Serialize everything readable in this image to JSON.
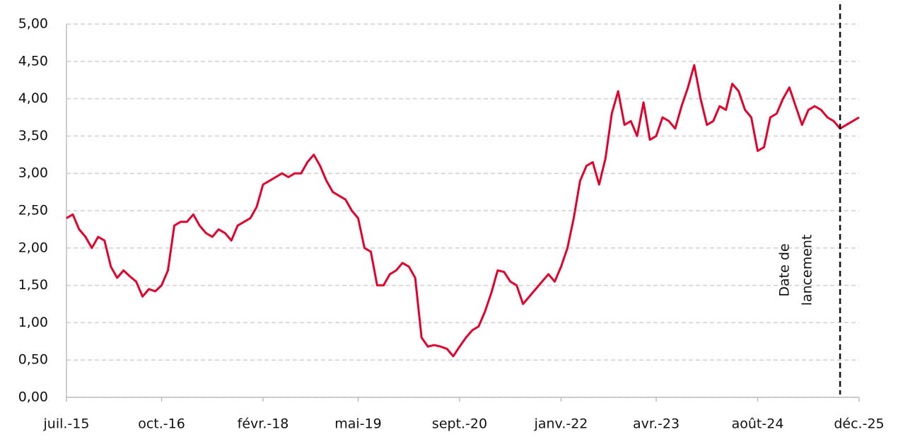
{
  "chart_data": {
    "type": "line",
    "x": [
      "2015-07",
      "2015-08",
      "2015-09",
      "2015-10",
      "2015-11",
      "2015-12",
      "2016-01",
      "2016-02",
      "2016-03",
      "2016-04",
      "2016-05",
      "2016-06",
      "2016-07",
      "2016-08",
      "2016-09",
      "2016-10",
      "2016-11",
      "2016-12",
      "2017-01",
      "2017-02",
      "2017-03",
      "2017-04",
      "2017-05",
      "2017-06",
      "2017-07",
      "2017-08",
      "2017-09",
      "2017-10",
      "2017-11",
      "2017-12",
      "2018-01",
      "2018-02",
      "2018-03",
      "2018-04",
      "2018-05",
      "2018-06",
      "2018-07",
      "2018-08",
      "2018-09",
      "2018-10",
      "2018-11",
      "2018-12",
      "2019-01",
      "2019-02",
      "2019-03",
      "2019-04",
      "2019-05",
      "2019-06",
      "2019-07",
      "2019-08",
      "2019-09",
      "2019-10",
      "2019-11",
      "2019-12",
      "2020-01",
      "2020-02",
      "2020-03",
      "2020-04",
      "2020-05",
      "2020-06",
      "2020-07",
      "2020-08",
      "2020-09",
      "2020-10",
      "2020-11",
      "2020-12",
      "2021-01",
      "2021-02",
      "2021-03",
      "2021-04",
      "2021-05",
      "2021-06",
      "2021-07",
      "2021-08",
      "2021-09",
      "2021-10",
      "2021-11",
      "2021-12",
      "2022-01",
      "2022-02",
      "2022-03",
      "2022-04",
      "2022-05",
      "2022-06",
      "2022-07",
      "2022-08",
      "2022-09",
      "2022-10",
      "2022-11",
      "2022-12",
      "2023-01",
      "2023-02",
      "2023-03",
      "2023-04",
      "2023-05",
      "2023-06",
      "2023-07",
      "2023-08",
      "2023-09",
      "2023-10",
      "2023-11",
      "2023-12",
      "2024-01",
      "2024-02",
      "2024-03",
      "2024-04",
      "2024-05",
      "2024-06",
      "2024-07",
      "2024-08",
      "2024-09",
      "2024-10",
      "2024-11",
      "2024-12",
      "2025-01",
      "2025-02",
      "2025-03",
      "2025-04",
      "2025-05",
      "2025-06",
      "2025-07",
      "2025-08",
      "2025-09",
      "2025-10",
      "2025-11",
      "2025-12"
    ],
    "values": [
      2.4,
      2.45,
      2.25,
      2.15,
      2.0,
      2.15,
      2.1,
      1.75,
      1.6,
      1.7,
      1.62,
      1.55,
      1.35,
      1.45,
      1.42,
      1.5,
      1.7,
      2.3,
      2.35,
      2.35,
      2.45,
      2.3,
      2.2,
      2.15,
      2.25,
      2.2,
      2.1,
      2.3,
      2.35,
      2.4,
      2.55,
      2.85,
      2.9,
      2.95,
      3.0,
      2.95,
      3.0,
      3.0,
      3.15,
      3.25,
      3.1,
      2.9,
      2.75,
      2.7,
      2.65,
      2.5,
      2.4,
      2.0,
      1.95,
      1.5,
      1.5,
      1.65,
      1.7,
      1.8,
      1.75,
      1.6,
      0.8,
      0.68,
      0.7,
      0.68,
      0.65,
      0.55,
      0.68,
      0.8,
      0.9,
      0.95,
      1.15,
      1.4,
      1.7,
      1.68,
      1.55,
      1.5,
      1.25,
      1.35,
      1.45,
      1.55,
      1.65,
      1.55,
      1.75,
      2.0,
      2.4,
      2.9,
      3.1,
      3.15,
      2.85,
      3.2,
      3.8,
      4.1,
      3.65,
      3.7,
      3.5,
      3.95,
      3.45,
      3.5,
      3.75,
      3.7,
      3.6,
      3.9,
      4.15,
      4.45,
      4.0,
      3.65,
      3.7,
      3.9,
      3.85,
      4.2,
      4.1,
      3.85,
      3.75,
      3.3,
      3.35,
      3.75,
      3.8,
      4.0,
      4.15,
      3.9,
      3.65,
      3.85,
      3.9,
      3.85,
      3.75,
      3.7,
      3.6,
      3.65,
      3.7,
      3.75
    ],
    "color": "#e4002b",
    "xlim": [
      "2015-07",
      "2025-12"
    ],
    "xticks": [
      {
        "value": "2015-07",
        "label": "juil.-15"
      },
      {
        "value": "2016-10",
        "label": "oct.-16"
      },
      {
        "value": "2018-02",
        "label": "févr.-18"
      },
      {
        "value": "2019-05",
        "label": "mai-19"
      },
      {
        "value": "2020-09",
        "label": "sept.-20"
      },
      {
        "value": "2022-01",
        "label": "janv.-22"
      },
      {
        "value": "2023-04",
        "label": "avr.-23"
      },
      {
        "value": "2024-08",
        "label": "août-24"
      },
      {
        "value": "2025-12",
        "label": "déc.-25"
      }
    ],
    "ylim": [
      0,
      5
    ],
    "yticks": [
      {
        "value": 0,
        "label": "0,00"
      },
      {
        "value": 0.5,
        "label": "0,50"
      },
      {
        "value": 1,
        "label": "1,00"
      },
      {
        "value": 1.5,
        "label": "1,50"
      },
      {
        "value": 2,
        "label": "2,00"
      },
      {
        "value": 2.5,
        "label": "2,50"
      },
      {
        "value": 3,
        "label": "3,00"
      },
      {
        "value": 3.5,
        "label": "3,50"
      },
      {
        "value": 4,
        "label": "4,00"
      },
      {
        "value": 4.5,
        "label": "4,50"
      },
      {
        "value": 5,
        "label": "5,00"
      }
    ],
    "grid": true,
    "annotation": {
      "x": "2025-09",
      "lines": [
        "Date de",
        "lancement"
      ]
    }
  }
}
